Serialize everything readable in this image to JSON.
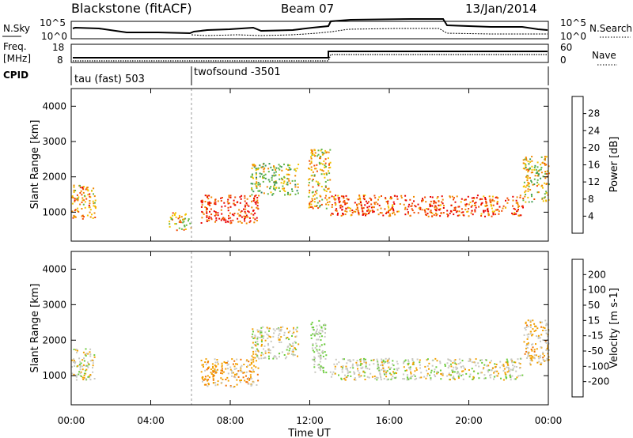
{
  "header": {
    "station": "Blackstone (fitACF)",
    "beam": "Beam 07",
    "date": "13/Jan/2014"
  },
  "noise_panel": {
    "left_label": "N.Sky",
    "left_ticks": [
      "10^5",
      "10^0"
    ],
    "right_label": "N.Search",
    "right_ticks": [
      "10^5",
      "10^0"
    ]
  },
  "freq_panel": {
    "left_label_line1": "Freq.",
    "left_label_line2": "[MHz]",
    "left_ticks": [
      "18",
      "8"
    ],
    "right_label": "Nave",
    "right_ticks": [
      "60",
      "0"
    ]
  },
  "cpid_panel": {
    "label": "CPID",
    "modes": [
      {
        "name": "tau (fast) 503",
        "start_hour": 0
      },
      {
        "name": "twofsound -3501",
        "start_hour": 6
      }
    ]
  },
  "colors": {
    "power_scale": [
      "#1e22c8",
      "#205aa0",
      "#2f7d68",
      "#3e9b52",
      "#62b648",
      "#f2c400",
      "#f08800",
      "#f24a00",
      "#e80000"
    ],
    "velocity_scale": [
      "#1e22c8",
      "#1f7a74",
      "#48a838",
      "#6ccc3c",
      "#c8c8c0",
      "#f2a000",
      "#f27000",
      "#f22c00",
      "#e80000"
    ]
  },
  "chart_data": [
    {
      "type": "heatmap",
      "name": "power",
      "xlabel": "Time UT",
      "ylabel": "Slant Range [km]",
      "xlim": [
        0,
        24
      ],
      "ylim": [
        180,
        4500
      ],
      "x_ticks": [
        "00:00",
        "04:00",
        "08:00",
        "12:00",
        "16:00",
        "20:00",
        "00:00"
      ],
      "y_ticks": [
        "1000",
        "2000",
        "3000",
        "4000"
      ],
      "colorbar": {
        "label": "Power [dB]",
        "ticks": [
          "4",
          "8",
          "12",
          "16",
          "20",
          "24",
          "28"
        ],
        "range": [
          0,
          30
        ]
      },
      "echo_regions": [
        {
          "start_hour": 0.0,
          "end_hour": 1.2,
          "range_km_from": 800,
          "range_km_to": 1800,
          "power_db": 22
        },
        {
          "start_hour": 4.9,
          "end_hour": 6.0,
          "range_km_from": 500,
          "range_km_to": 1000,
          "power_db": 20
        },
        {
          "start_hour": 6.5,
          "end_hour": 9.4,
          "range_km_from": 700,
          "range_km_to": 1500,
          "power_db": 28
        },
        {
          "start_hour": 9.0,
          "end_hour": 11.4,
          "range_km_from": 1500,
          "range_km_to": 2400,
          "power_db": 16
        },
        {
          "start_hour": 11.9,
          "end_hour": 13.0,
          "range_km_from": 1100,
          "range_km_to": 2800,
          "power_db": 20
        },
        {
          "start_hour": 13.0,
          "end_hour": 22.7,
          "range_km_from": 900,
          "range_km_to": 1500,
          "power_db": 26
        },
        {
          "start_hour": 22.7,
          "end_hour": 24.0,
          "range_km_from": 1300,
          "range_km_to": 2600,
          "power_db": 18
        }
      ]
    },
    {
      "type": "heatmap",
      "name": "velocity",
      "xlabel": "Time UT",
      "ylabel": "Slant Range [km]",
      "xlim": [
        0,
        24
      ],
      "ylim": [
        180,
        4500
      ],
      "x_ticks": [
        "00:00",
        "04:00",
        "08:00",
        "12:00",
        "16:00",
        "20:00",
        "00:00"
      ],
      "y_ticks": [
        "1000",
        "2000",
        "3000",
        "4000"
      ],
      "colorbar": {
        "label": "Velocity [m s-1]",
        "ticks": [
          "200",
          "100",
          "50",
          "15",
          "-15",
          "-50",
          "-100",
          "-200"
        ],
        "range": [
          -250,
          250
        ]
      },
      "echo_regions": [
        {
          "start_hour": 0.0,
          "end_hour": 1.2,
          "range_km_from": 900,
          "range_km_to": 1800,
          "velocity_ms": 0
        },
        {
          "start_hour": 6.5,
          "end_hour": 9.4,
          "range_km_from": 700,
          "range_km_to": 1500,
          "velocity_ms": -60
        },
        {
          "start_hour": 9.0,
          "end_hour": 11.4,
          "range_km_from": 1500,
          "range_km_to": 2400,
          "velocity_ms": 0
        },
        {
          "start_hour": 12.0,
          "end_hour": 12.8,
          "range_km_from": 1100,
          "range_km_to": 2600,
          "velocity_ms": 30
        },
        {
          "start_hour": 13.0,
          "end_hour": 22.7,
          "range_km_from": 900,
          "range_km_to": 1500,
          "velocity_ms": 0
        },
        {
          "start_hour": 22.7,
          "end_hour": 24.0,
          "range_km_from": 1300,
          "range_km_to": 2600,
          "velocity_ms": -40
        }
      ]
    }
  ]
}
